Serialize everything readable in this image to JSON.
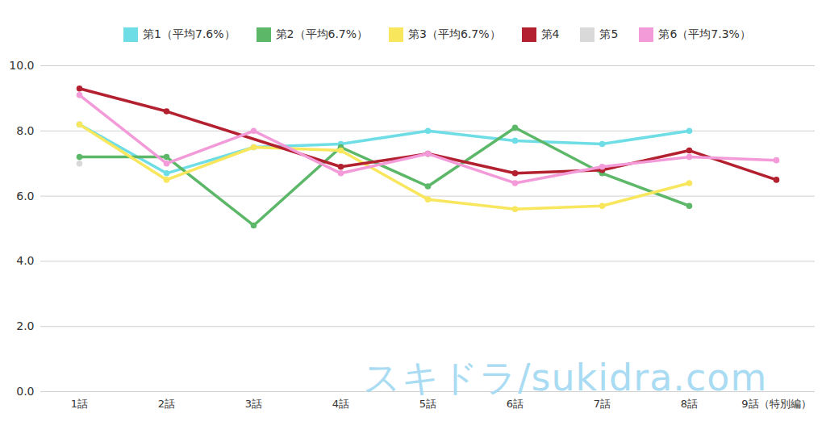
{
  "chart_data": {
    "type": "line",
    "categories": [
      "1話",
      "2話",
      "3話",
      "4話",
      "5話",
      "6話",
      "7話",
      "8話",
      "9話（特別編）"
    ],
    "series": [
      {
        "name": "第1（平均7.6%）",
        "color": "#6fdde6",
        "values": [
          8.2,
          6.7,
          7.5,
          7.6,
          8.0,
          7.7,
          7.6,
          8.0,
          null
        ]
      },
      {
        "name": "第2（平均6.7%）",
        "color": "#5cb868",
        "values": [
          7.2,
          7.2,
          5.1,
          7.5,
          6.3,
          8.1,
          6.7,
          5.7,
          null
        ]
      },
      {
        "name": "第3（平均6.7%）",
        "color": "#f8e65c",
        "values": [
          8.2,
          6.5,
          7.5,
          7.4,
          5.9,
          5.6,
          5.7,
          6.4,
          null
        ]
      },
      {
        "name": "第4",
        "color": "#b3202f",
        "values": [
          9.3,
          8.6,
          null,
          6.9,
          7.3,
          6.7,
          6.8,
          7.4,
          6.5
        ]
      },
      {
        "name": "第5",
        "color": "#d9d9d9",
        "values": [
          7.0,
          null,
          null,
          null,
          null,
          null,
          null,
          null,
          null
        ]
      },
      {
        "name": "第6（平均7.3%）",
        "color": "#f39ad9",
        "values": [
          9.1,
          7.0,
          8.0,
          6.7,
          7.3,
          6.4,
          6.9,
          7.2,
          7.1
        ]
      }
    ],
    "ylim": [
      0,
      10
    ],
    "yticks": [
      {
        "value": 0,
        "label": "0.0"
      },
      {
        "value": 2,
        "label": "2.0"
      },
      {
        "value": 4,
        "label": "4.0"
      },
      {
        "value": 6,
        "label": "6.0"
      },
      {
        "value": 8,
        "label": "8.0"
      },
      {
        "value": 10,
        "label": "10.0"
      }
    ],
    "grid": true,
    "legend": "top",
    "marker": "circle",
    "line_style": "solid",
    "annotations": [
      {
        "text": "スキドラ/sukidra.com"
      }
    ]
  }
}
